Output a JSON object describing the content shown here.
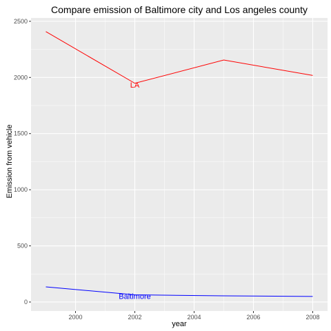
{
  "chart_data": {
    "type": "line",
    "title": "Compare emission of Baltimore city and Los angeles county",
    "xlabel": "year",
    "ylabel": "Emission from vehicle",
    "xlim": [
      1998.5,
      2008.5
    ],
    "ylim": [
      -80,
      2530
    ],
    "x_ticks": [
      2000,
      2002,
      2004,
      2006,
      2008
    ],
    "y_ticks": [
      0,
      500,
      1000,
      1500,
      2000,
      2500
    ],
    "grid": true,
    "panel_color": "#ebebeb",
    "grid_color": "#ffffff",
    "series": [
      {
        "label": "LA",
        "color": "#ff0000",
        "label_x": 2002,
        "label_y": 1935,
        "points": [
          {
            "x": 1999,
            "y": 2408
          },
          {
            "x": 2002,
            "y": 1948
          },
          {
            "x": 2005,
            "y": 2155
          },
          {
            "x": 2008,
            "y": 2018
          }
        ]
      },
      {
        "label": "Baltimore",
        "color": "#0000ff",
        "label_x": 2002,
        "label_y": 52,
        "points": [
          {
            "x": 1999,
            "y": 135
          },
          {
            "x": 2002,
            "y": 64
          },
          {
            "x": 2005,
            "y": 55
          },
          {
            "x": 2008,
            "y": 50
          }
        ]
      }
    ]
  }
}
